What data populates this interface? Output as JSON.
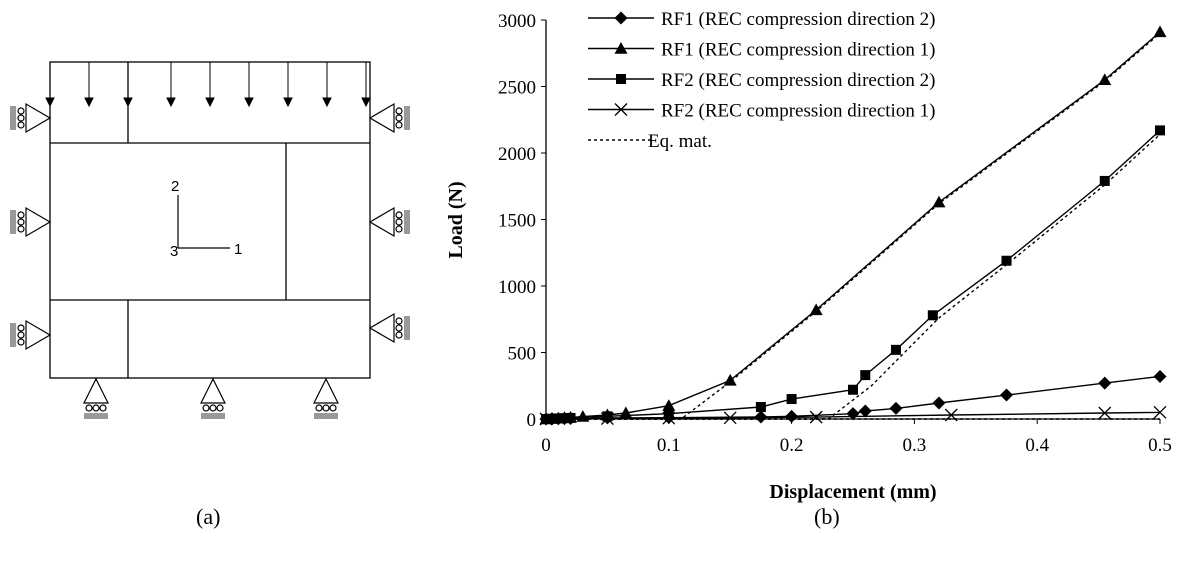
{
  "panel_a": {
    "caption": "(a)",
    "axis_labels": {
      "axis_1": "1",
      "axis_2": "2",
      "axis_3": "3"
    }
  },
  "panel_b": {
    "caption": "(b)"
  },
  "chart_data": {
    "type": "line",
    "xlabel": "Displacement (mm)",
    "ylabel": "Load (N)",
    "xlim": [
      0,
      0.5
    ],
    "ylim": [
      0,
      3000
    ],
    "xticks": [
      0,
      0.1,
      0.2,
      0.3,
      0.4,
      0.5
    ],
    "yticks": [
      0,
      500,
      1000,
      1500,
      2000,
      2500,
      3000
    ],
    "grid": false,
    "legend_position": "top",
    "series": [
      {
        "name": "RF1 (REC compression direction 2)",
        "marker": "diamond",
        "line": "solid",
        "x": [
          0,
          0.005,
          0.01,
          0.015,
          0.02,
          0.05,
          0.1,
          0.175,
          0.2,
          0.25,
          0.26,
          0.285,
          0.32,
          0.375,
          0.455,
          0.5
        ],
        "y": [
          0,
          1,
          2,
          3,
          4,
          8,
          10,
          15,
          20,
          40,
          60,
          80,
          120,
          180,
          270,
          320
        ]
      },
      {
        "name": "RF1 (REC compression direction 1)",
        "marker": "triangle",
        "line": "solid",
        "x": [
          0,
          0.005,
          0.01,
          0.015,
          0.02,
          0.03,
          0.05,
          0.065,
          0.1,
          0.15,
          0.22,
          0.32,
          0.455,
          0.5
        ],
        "y": [
          0,
          3,
          6,
          9,
          12,
          18,
          30,
          45,
          100,
          290,
          820,
          1630,
          2550,
          2910
        ]
      },
      {
        "name": "RF2 (REC compression direction 2)",
        "marker": "square",
        "line": "solid",
        "x": [
          0,
          0.005,
          0.01,
          0.015,
          0.02,
          0.05,
          0.1,
          0.175,
          0.2,
          0.25,
          0.26,
          0.285,
          0.315,
          0.375,
          0.455,
          0.5
        ],
        "y": [
          0,
          2,
          4,
          6,
          8,
          20,
          40,
          90,
          150,
          220,
          330,
          520,
          780,
          1190,
          1790,
          2170
        ]
      },
      {
        "name": "RF2 (REC compression direction 1)",
        "marker": "x",
        "line": "solid",
        "x": [
          0,
          0.05,
          0.1,
          0.15,
          0.22,
          0.33,
          0.455,
          0.5
        ],
        "y": [
          0,
          3,
          6,
          9,
          14,
          30,
          45,
          50
        ]
      },
      {
        "name": "Eq. mat.",
        "marker": "none",
        "line": "dotted",
        "segments": [
          {
            "x": [
              0,
              0.11,
              0.15,
              0.22,
              0.32,
              0.455,
              0.5
            ],
            "y": [
              0,
              0,
              280,
              810,
              1620,
              2540,
              2900
            ]
          },
          {
            "x": [
              0,
              0.23,
              0.265,
              0.32,
              0.375,
              0.455,
              0.5
            ],
            "y": [
              0,
              0,
              250,
              760,
              1160,
              1760,
              2140
            ]
          },
          {
            "x": [
              0,
              0.5
            ],
            "y": [
              0,
              0
            ]
          }
        ]
      }
    ]
  }
}
